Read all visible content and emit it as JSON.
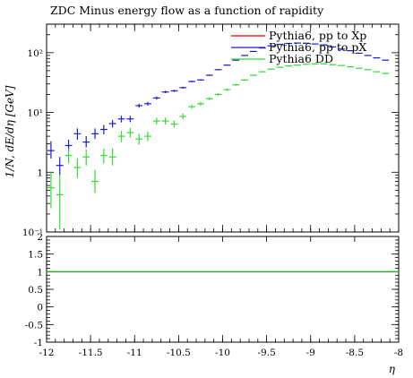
{
  "chart_data": {
    "type": "scatter",
    "title": "ZDC Minus energy flow as a function of rapidity",
    "xlabel": "η",
    "ylabel": "1/N, dE/dη [GeV]",
    "xlim": [
      -12,
      -8
    ],
    "ylim": [
      0.1,
      300
    ],
    "yscale": "log",
    "grid": false,
    "legend_position": "top-right",
    "xticks": [
      "-12",
      "-11.5",
      "-11",
      "-10.5",
      "-10",
      "-9.5",
      "-9",
      "-8.5",
      "-8"
    ],
    "yticks": [
      {
        "value": 0.1,
        "label": "10⁻¹"
      },
      {
        "value": 1,
        "label": "1"
      },
      {
        "value": 10,
        "label": "10¹"
      },
      {
        "value": 100,
        "label": "10²"
      }
    ],
    "series": [
      {
        "name": "Pythia6, pp to Xp",
        "color": "#dd0000",
        "points": []
      },
      {
        "name": "Pythia6, pp to pX",
        "color": "#1a1ad6",
        "points": [
          {
            "x": -11.95,
            "y": 2.3,
            "ylo": 1.7,
            "yhi": 3.3
          },
          {
            "x": -11.85,
            "y": 1.3,
            "ylo": 0.9,
            "yhi": 1.8
          },
          {
            "x": -11.75,
            "y": 2.8,
            "ylo": 2.2,
            "yhi": 3.5
          },
          {
            "x": -11.65,
            "y": 4.4,
            "ylo": 3.5,
            "yhi": 5.4
          },
          {
            "x": -11.55,
            "y": 3.2,
            "ylo": 2.6,
            "yhi": 4.0
          },
          {
            "x": -11.45,
            "y": 4.4,
            "ylo": 3.6,
            "yhi": 5.4
          },
          {
            "x": -11.35,
            "y": 5.2,
            "ylo": 4.3,
            "yhi": 6.2
          },
          {
            "x": -11.25,
            "y": 6.5,
            "ylo": 5.6,
            "yhi": 7.5
          },
          {
            "x": -11.15,
            "y": 7.8,
            "ylo": 6.8,
            "yhi": 8.8
          },
          {
            "x": -11.05,
            "y": 7.8,
            "ylo": 6.9,
            "yhi": 8.8
          },
          {
            "x": -10.95,
            "y": 13.0,
            "ylo": 12.0,
            "yhi": 14.0
          },
          {
            "x": -10.85,
            "y": 14.0,
            "ylo": 13.0,
            "yhi": 15.0
          },
          {
            "x": -10.75,
            "y": 17.5,
            "ylo": 16.5,
            "yhi": 18.5
          },
          {
            "x": -10.65,
            "y": 22.0,
            "ylo": 21.0,
            "yhi": 23.0
          },
          {
            "x": -10.55,
            "y": 23.0,
            "ylo": 22.0,
            "yhi": 24.0
          },
          {
            "x": -10.45,
            "y": 26.0,
            "ylo": 25.0,
            "yhi": 27.0
          },
          {
            "x": -10.35,
            "y": 33.0,
            "ylo": 32.0,
            "yhi": 34.0
          },
          {
            "x": -10.25,
            "y": 35.0,
            "ylo": 34.0,
            "yhi": 36.0
          },
          {
            "x": -10.15,
            "y": 42.0,
            "ylo": 41.0,
            "yhi": 43.0
          },
          {
            "x": -10.05,
            "y": 52.0,
            "ylo": 51.0,
            "yhi": 53.0
          },
          {
            "x": -9.95,
            "y": 62.0,
            "ylo": 61.0,
            "yhi": 63.0
          },
          {
            "x": -9.85,
            "y": 75.0,
            "ylo": 74.0,
            "yhi": 76.0
          },
          {
            "x": -9.75,
            "y": 90.0,
            "ylo": 89.0,
            "yhi": 91.0
          },
          {
            "x": -9.65,
            "y": 105.0,
            "ylo": 104.0,
            "yhi": 106.0
          },
          {
            "x": -9.55,
            "y": 120.0,
            "ylo": 119.0,
            "yhi": 121.0
          },
          {
            "x": -9.45,
            "y": 130.0,
            "ylo": 129.0,
            "yhi": 131.0
          },
          {
            "x": -9.35,
            "y": 138.0,
            "ylo": 137.0,
            "yhi": 139.0
          },
          {
            "x": -9.25,
            "y": 143.0,
            "ylo": 142.0,
            "yhi": 144.0
          },
          {
            "x": -9.15,
            "y": 145.0,
            "ylo": 144.0,
            "yhi": 146.0
          },
          {
            "x": -9.05,
            "y": 144.0,
            "ylo": 143.0,
            "yhi": 145.0
          },
          {
            "x": -8.95,
            "y": 140.0,
            "ylo": 139.0,
            "yhi": 141.0
          },
          {
            "x": -8.85,
            "y": 135.0,
            "ylo": 134.0,
            "yhi": 136.0
          },
          {
            "x": -8.75,
            "y": 125.0,
            "ylo": 124.0,
            "yhi": 126.0
          },
          {
            "x": -8.65,
            "y": 115.0,
            "ylo": 114.0,
            "yhi": 116.0
          },
          {
            "x": -8.55,
            "y": 108.0,
            "ylo": 107.0,
            "yhi": 109.0
          },
          {
            "x": -8.45,
            "y": 98.0,
            "ylo": 97.0,
            "yhi": 99.0
          },
          {
            "x": -8.35,
            "y": 90.0,
            "ylo": 89.0,
            "yhi": 91.0
          },
          {
            "x": -8.25,
            "y": 82.0,
            "ylo": 81.0,
            "yhi": 83.0
          },
          {
            "x": -8.15,
            "y": 75.0,
            "ylo": 74.0,
            "yhi": 76.0
          }
        ]
      },
      {
        "name": "Pythia6 DD",
        "color": "#33dd33",
        "points": [
          {
            "x": -11.95,
            "y": 0.55,
            "ylo": 0.25,
            "yhi": 1.0
          },
          {
            "x": -11.85,
            "y": 0.42,
            "ylo": 0.11,
            "yhi": 0.9
          },
          {
            "x": -11.75,
            "y": 1.9,
            "ylo": 1.4,
            "yhi": 2.5
          },
          {
            "x": -11.65,
            "y": 1.2,
            "ylo": 0.8,
            "yhi": 1.7
          },
          {
            "x": -11.55,
            "y": 1.8,
            "ylo": 1.3,
            "yhi": 2.4
          },
          {
            "x": -11.45,
            "y": 0.7,
            "ylo": 0.45,
            "yhi": 1.1
          },
          {
            "x": -11.35,
            "y": 1.9,
            "ylo": 1.4,
            "yhi": 2.5
          },
          {
            "x": -11.25,
            "y": 1.8,
            "ylo": 1.3,
            "yhi": 2.5
          },
          {
            "x": -11.15,
            "y": 4.0,
            "ylo": 3.2,
            "yhi": 4.9
          },
          {
            "x": -11.05,
            "y": 4.6,
            "ylo": 3.8,
            "yhi": 5.5
          },
          {
            "x": -10.95,
            "y": 3.6,
            "ylo": 2.9,
            "yhi": 4.4
          },
          {
            "x": -10.85,
            "y": 4.0,
            "ylo": 3.3,
            "yhi": 4.8
          },
          {
            "x": -10.75,
            "y": 7.2,
            "ylo": 6.3,
            "yhi": 8.2
          },
          {
            "x": -10.65,
            "y": 7.2,
            "ylo": 6.3,
            "yhi": 8.2
          },
          {
            "x": -10.55,
            "y": 6.4,
            "ylo": 5.6,
            "yhi": 7.3
          },
          {
            "x": -10.45,
            "y": 8.6,
            "ylo": 7.7,
            "yhi": 9.6
          },
          {
            "x": -10.35,
            "y": 12.5,
            "ylo": 11.5,
            "yhi": 13.5
          },
          {
            "x": -10.25,
            "y": 14.0,
            "ylo": 13.0,
            "yhi": 15.0
          },
          {
            "x": -10.15,
            "y": 17.0,
            "ylo": 16.0,
            "yhi": 18.0
          },
          {
            "x": -10.05,
            "y": 20.0,
            "ylo": 19.0,
            "yhi": 21.0
          },
          {
            "x": -9.95,
            "y": 24.0,
            "ylo": 23.0,
            "yhi": 25.0
          },
          {
            "x": -9.85,
            "y": 29.0,
            "ylo": 28.0,
            "yhi": 30.0
          },
          {
            "x": -9.75,
            "y": 35.0,
            "ylo": 34.0,
            "yhi": 36.0
          },
          {
            "x": -9.65,
            "y": 42.0,
            "ylo": 41.0,
            "yhi": 43.0
          },
          {
            "x": -9.55,
            "y": 48.0,
            "ylo": 47.0,
            "yhi": 49.0
          },
          {
            "x": -9.45,
            "y": 53.0,
            "ylo": 52.0,
            "yhi": 54.0
          },
          {
            "x": -9.35,
            "y": 57.0,
            "ylo": 56.0,
            "yhi": 58.0
          },
          {
            "x": -9.25,
            "y": 60.0,
            "ylo": 59.0,
            "yhi": 61.0
          },
          {
            "x": -9.15,
            "y": 62.0,
            "ylo": 61.0,
            "yhi": 63.0
          },
          {
            "x": -9.05,
            "y": 64.0,
            "ylo": 63.0,
            "yhi": 65.0
          },
          {
            "x": -8.95,
            "y": 65.0,
            "ylo": 64.0,
            "yhi": 66.0
          },
          {
            "x": -8.85,
            "y": 65.0,
            "ylo": 64.0,
            "yhi": 66.0
          },
          {
            "x": -8.75,
            "y": 63.0,
            "ylo": 62.0,
            "yhi": 64.0
          },
          {
            "x": -8.65,
            "y": 61.0,
            "ylo": 60.0,
            "yhi": 62.0
          },
          {
            "x": -8.55,
            "y": 58.0,
            "ylo": 57.0,
            "yhi": 59.0
          },
          {
            "x": -8.45,
            "y": 55.0,
            "ylo": 54.0,
            "yhi": 56.0
          },
          {
            "x": -8.35,
            "y": 52.0,
            "ylo": 51.0,
            "yhi": 53.0
          },
          {
            "x": -8.25,
            "y": 48.0,
            "ylo": 47.0,
            "yhi": 49.0
          },
          {
            "x": -8.15,
            "y": 45.0,
            "ylo": 44.0,
            "yhi": 46.0
          }
        ]
      }
    ],
    "ratio_panel": {
      "ylim": [
        -1,
        2
      ],
      "yticks": [
        "-1",
        "-0.5",
        "0",
        "0.5",
        "1",
        "1.5",
        "2"
      ],
      "reference_line": {
        "y": 1,
        "color": "#33aa33"
      }
    }
  }
}
